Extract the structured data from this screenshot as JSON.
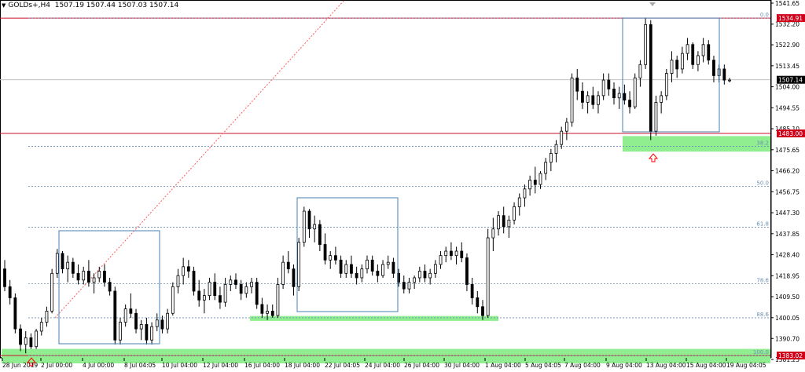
{
  "header": {
    "symbol_label": "GOLDs+,H4",
    "ohlc_text": "1507.19 1507.44 1507.03 1507.14"
  },
  "colors": {
    "background": "#ffffff",
    "candle": "#000000",
    "grid_line": "#c0c0c0",
    "resistance_line": "#c8102e",
    "price_tag_red": "#d0001b",
    "fib_level": "#6a8fb5",
    "support_zone": "#90ee90",
    "box_border": "#4682b4",
    "trend_line": "#ff5a5a",
    "arrow_marker": "#ff0000"
  },
  "icons": {
    "menu": "triangle-down-icon",
    "arrow_up": "arrow-up-outline-icon",
    "shift_marker": "triangle-down-small-icon"
  },
  "chart_data": {
    "type": "candlestick",
    "timeframe": "H4",
    "y_axis_ticks": [
      "1541.65",
      "1532.20",
      "1522.90",
      "1513.45",
      "1504.00",
      "1494.55",
      "1485.10",
      "1475.65",
      "1466.20",
      "1456.75",
      "1447.30",
      "1437.85",
      "1428.40",
      "1418.95",
      "1409.50",
      "1400.05",
      "1390.70",
      "1381.25"
    ],
    "x_axis_labels": [
      "28 Jun 2019",
      "2 Jul 00:00",
      "4 Jul 00:00",
      "8 Jul 04:05",
      "10 Jul 04:00",
      "12 Jul 04:00",
      "16 Jul 04:00",
      "18 Jul 04:00",
      "22 Jul 04:05",
      "24 Jul 04:00",
      "26 Jul 04:00",
      "30 Jul 04:00",
      "1 Aug 04:00",
      "5 Aug 04:05",
      "7 Aug 04:00",
      "9 Aug 04:00",
      "13 Aug 04:00",
      "15 Aug 04:00",
      "19 Aug 04:05"
    ],
    "price_tags": {
      "high_line": "1534.91",
      "current": "1507.14",
      "support_line": "1483.00",
      "low_line": "1383.02"
    },
    "fib_levels": [
      {
        "label": "0.0",
        "price": 1534.9
      },
      {
        "label": "38.2",
        "price": 1477.2
      },
      {
        "label": "50.0",
        "price": 1459.1
      },
      {
        "label": "61.8",
        "price": 1440.8
      },
      {
        "label": "78.6",
        "price": 1415.3
      },
      {
        "label": "88.6",
        "price": 1400.0
      },
      {
        "label": "100.0",
        "price": 1383.0
      }
    ],
    "ohlc_series": [
      [
        1422,
        1426,
        1412,
        1414
      ],
      [
        1414,
        1417,
        1406,
        1409
      ],
      [
        1409,
        1411,
        1393,
        1395
      ],
      [
        1395,
        1397,
        1385,
        1388
      ],
      [
        1388,
        1394,
        1384,
        1391
      ],
      [
        1391,
        1393,
        1386,
        1387
      ],
      [
        1387,
        1395,
        1386,
        1394
      ],
      [
        1394,
        1400,
        1392,
        1398
      ],
      [
        1398,
        1405,
        1396,
        1403
      ],
      [
        1403,
        1422,
        1402,
        1420
      ],
      [
        1420,
        1431,
        1418,
        1429
      ],
      [
        1429,
        1430,
        1420,
        1422
      ],
      [
        1422,
        1428,
        1416,
        1425
      ],
      [
        1425,
        1427,
        1418,
        1420
      ],
      [
        1420,
        1424,
        1415,
        1417
      ],
      [
        1417,
        1423,
        1415,
        1421
      ],
      [
        1421,
        1426,
        1414,
        1416
      ],
      [
        1416,
        1420,
        1411,
        1418
      ],
      [
        1418,
        1423,
        1416,
        1421
      ],
      [
        1421,
        1424,
        1414,
        1416
      ],
      [
        1416,
        1418,
        1410,
        1412
      ],
      [
        1412,
        1414,
        1388,
        1390
      ],
      [
        1390,
        1400,
        1388,
        1398
      ],
      [
        1398,
        1406,
        1396,
        1404
      ],
      [
        1404,
        1411,
        1400,
        1402
      ],
      [
        1402,
        1404,
        1393,
        1395
      ],
      [
        1395,
        1399,
        1390,
        1397
      ],
      [
        1397,
        1400,
        1388,
        1390
      ],
      [
        1390,
        1398,
        1388,
        1396
      ],
      [
        1396,
        1402,
        1394,
        1399
      ],
      [
        1399,
        1401,
        1393,
        1395
      ],
      [
        1395,
        1404,
        1393,
        1402
      ],
      [
        1402,
        1416,
        1401,
        1414
      ],
      [
        1414,
        1422,
        1411,
        1419
      ],
      [
        1419,
        1427,
        1415,
        1423
      ],
      [
        1423,
        1426,
        1418,
        1421
      ],
      [
        1421,
        1423,
        1410,
        1412
      ],
      [
        1412,
        1417,
        1405,
        1408
      ],
      [
        1408,
        1413,
        1402,
        1410
      ],
      [
        1410,
        1418,
        1408,
        1416
      ],
      [
        1416,
        1420,
        1408,
        1410
      ],
      [
        1410,
        1414,
        1404,
        1407
      ],
      [
        1407,
        1418,
        1405,
        1415
      ],
      [
        1415,
        1419,
        1412,
        1417
      ],
      [
        1417,
        1420,
        1413,
        1415
      ],
      [
        1415,
        1417,
        1408,
        1411
      ],
      [
        1411,
        1416,
        1409,
        1414
      ],
      [
        1414,
        1418,
        1411,
        1416
      ],
      [
        1416,
        1418,
        1404,
        1406
      ],
      [
        1406,
        1409,
        1400,
        1402
      ],
      [
        1402,
        1406,
        1399,
        1403
      ],
      [
        1403,
        1406,
        1400,
        1401
      ],
      [
        1401,
        1418,
        1400,
        1415
      ],
      [
        1415,
        1428,
        1413,
        1425
      ],
      [
        1425,
        1430,
        1420,
        1422
      ],
      [
        1422,
        1424,
        1410,
        1414
      ],
      [
        1414,
        1436,
        1412,
        1434
      ],
      [
        1434,
        1450,
        1432,
        1448
      ],
      [
        1448,
        1449,
        1436,
        1440
      ],
      [
        1440,
        1446,
        1434,
        1442
      ],
      [
        1442,
        1444,
        1430,
        1433
      ],
      [
        1433,
        1438,
        1424,
        1426
      ],
      [
        1426,
        1430,
        1422,
        1428
      ],
      [
        1428,
        1432,
        1424,
        1426
      ],
      [
        1426,
        1428,
        1418,
        1420
      ],
      [
        1420,
        1426,
        1418,
        1424
      ],
      [
        1424,
        1428,
        1418,
        1420
      ],
      [
        1420,
        1423,
        1415,
        1418
      ],
      [
        1418,
        1424,
        1416,
        1422
      ],
      [
        1422,
        1428,
        1420,
        1426
      ],
      [
        1426,
        1428,
        1419,
        1421
      ],
      [
        1421,
        1424,
        1416,
        1419
      ],
      [
        1419,
        1426,
        1418,
        1424
      ],
      [
        1424,
        1428,
        1422,
        1425
      ],
      [
        1425,
        1427,
        1418,
        1420
      ],
      [
        1420,
        1422,
        1414,
        1416
      ],
      [
        1416,
        1419,
        1411,
        1413
      ],
      [
        1413,
        1418,
        1411,
        1416
      ],
      [
        1416,
        1419,
        1413,
        1418
      ],
      [
        1418,
        1423,
        1416,
        1421
      ],
      [
        1421,
        1424,
        1416,
        1418
      ],
      [
        1418,
        1422,
        1415,
        1420
      ],
      [
        1420,
        1426,
        1418,
        1424
      ],
      [
        1424,
        1430,
        1422,
        1428
      ],
      [
        1428,
        1432,
        1425,
        1430
      ],
      [
        1430,
        1434,
        1426,
        1428
      ],
      [
        1428,
        1432,
        1424,
        1430
      ],
      [
        1430,
        1434,
        1425,
        1427
      ],
      [
        1427,
        1429,
        1412,
        1415
      ],
      [
        1415,
        1418,
        1406,
        1409
      ],
      [
        1409,
        1412,
        1402,
        1405
      ],
      [
        1405,
        1408,
        1399,
        1401
      ],
      [
        1401,
        1440,
        1400,
        1436
      ],
      [
        1436,
        1445,
        1430,
        1440
      ],
      [
        1440,
        1448,
        1437,
        1446
      ],
      [
        1446,
        1450,
        1438,
        1441
      ],
      [
        1441,
        1446,
        1436,
        1444
      ],
      [
        1444,
        1452,
        1442,
        1450
      ],
      [
        1450,
        1456,
        1446,
        1454
      ],
      [
        1454,
        1460,
        1450,
        1458
      ],
      [
        1458,
        1464,
        1455,
        1462
      ],
      [
        1462,
        1468,
        1456,
        1460
      ],
      [
        1460,
        1466,
        1458,
        1465
      ],
      [
        1465,
        1472,
        1462,
        1470
      ],
      [
        1470,
        1476,
        1466,
        1474
      ],
      [
        1474,
        1480,
        1470,
        1478
      ],
      [
        1478,
        1486,
        1476,
        1484
      ],
      [
        1484,
        1490,
        1480,
        1488
      ],
      [
        1488,
        1510,
        1486,
        1508
      ],
      [
        1508,
        1512,
        1498,
        1502
      ],
      [
        1502,
        1506,
        1494,
        1497
      ],
      [
        1497,
        1502,
        1492,
        1500
      ],
      [
        1500,
        1504,
        1494,
        1496
      ],
      [
        1496,
        1502,
        1492,
        1500
      ],
      [
        1500,
        1510,
        1498,
        1507
      ],
      [
        1507,
        1510,
        1500,
        1503
      ],
      [
        1503,
        1506,
        1496,
        1499
      ],
      [
        1499,
        1504,
        1494,
        1501
      ],
      [
        1501,
        1505,
        1496,
        1498
      ],
      [
        1498,
        1502,
        1492,
        1495
      ],
      [
        1495,
        1510,
        1494,
        1508
      ],
      [
        1508,
        1516,
        1504,
        1514
      ],
      [
        1514,
        1535,
        1512,
        1532
      ],
      [
        1532,
        1534,
        1480,
        1484
      ],
      [
        1484,
        1500,
        1482,
        1497
      ],
      [
        1497,
        1502,
        1492,
        1500
      ],
      [
        1500,
        1512,
        1498,
        1510
      ],
      [
        1510,
        1520,
        1506,
        1516
      ],
      [
        1516,
        1518,
        1508,
        1512
      ],
      [
        1512,
        1522,
        1510,
        1519
      ],
      [
        1519,
        1526,
        1516,
        1523
      ],
      [
        1523,
        1524,
        1512,
        1514
      ],
      [
        1514,
        1520,
        1511,
        1518
      ],
      [
        1518,
        1526,
        1515,
        1523
      ],
      [
        1523,
        1525,
        1514,
        1516
      ],
      [
        1516,
        1518,
        1506,
        1509
      ],
      [
        1509,
        1514,
        1506,
        1512
      ],
      [
        1512,
        1514,
        1505,
        1507
      ],
      [
        1507,
        1508,
        1506,
        1507
      ]
    ],
    "ylim": [
      1380,
      1543
    ],
    "grid": false
  }
}
